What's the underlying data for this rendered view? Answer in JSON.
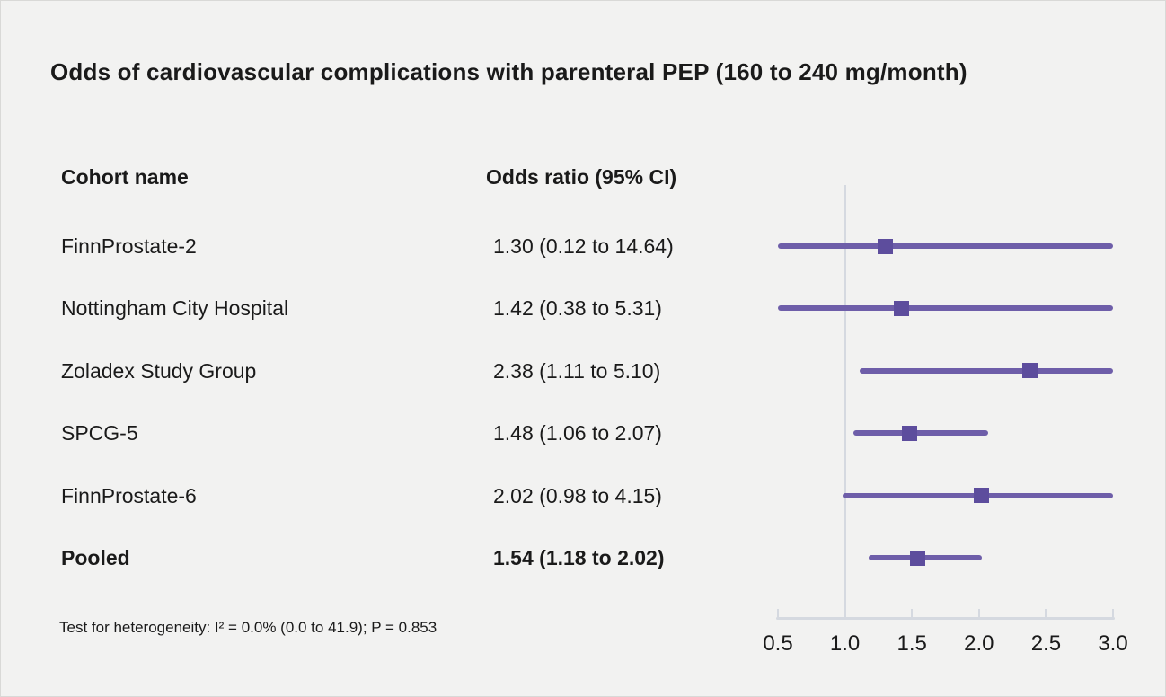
{
  "title": "Odds of cardiovascular complications with parenteral PEP (160 to 240 mg/month)",
  "columns": {
    "cohort": "Cohort name",
    "odds_ratio": "Odds ratio (95% CI)"
  },
  "footnote": "Test for heterogeneity: I² = 0.0% (0.0 to 41.9); P = 0.853",
  "colors": {
    "background": "#f2f2f1",
    "text": "#1a1a1a",
    "ci_line": "#6e5ea9",
    "marker": "#5d4d9d",
    "axis": "#d5d9e0"
  },
  "chart_data": {
    "type": "scatter",
    "subtype": "forest-plot",
    "title": "Odds of cardiovascular complications with parenteral PEP (160 to 240 mg/month)",
    "xlabel": "",
    "ylabel": "",
    "grid": false,
    "legend": false,
    "x_axis": {
      "scale": "linear",
      "min": 0.5,
      "max": 3.0,
      "ticks": [
        0.5,
        1.0,
        1.5,
        2.0,
        2.5,
        3.0
      ],
      "tick_labels": [
        "0.5",
        "1.0",
        "1.5",
        "2.0",
        "2.5",
        "3.0"
      ],
      "reference_line": 1.0,
      "ci_clipped_to_axis_range": true
    },
    "rows": [
      {
        "cohort": "FinnProstate-2",
        "or": 1.3,
        "ci_low": 0.12,
        "ci_high": 14.64,
        "label": "1.30 (0.12 to 14.64)",
        "bold": false
      },
      {
        "cohort": "Nottingham City Hospital",
        "or": 1.42,
        "ci_low": 0.38,
        "ci_high": 5.31,
        "label": "1.42 (0.38 to 5.31)",
        "bold": false
      },
      {
        "cohort": "Zoladex Study Group",
        "or": 2.38,
        "ci_low": 1.11,
        "ci_high": 5.1,
        "label": "2.38 (1.11 to 5.10)",
        "bold": false
      },
      {
        "cohort": "SPCG-5",
        "or": 1.48,
        "ci_low": 1.06,
        "ci_high": 2.07,
        "label": "1.48 (1.06 to 2.07)",
        "bold": false
      },
      {
        "cohort": "FinnProstate-6",
        "or": 2.02,
        "ci_low": 0.98,
        "ci_high": 4.15,
        "label": "2.02 (0.98 to 4.15)",
        "bold": false
      },
      {
        "cohort": "Pooled",
        "or": 1.54,
        "ci_low": 1.18,
        "ci_high": 2.02,
        "label": "1.54 (1.18 to 2.02)",
        "bold": true
      }
    ]
  }
}
